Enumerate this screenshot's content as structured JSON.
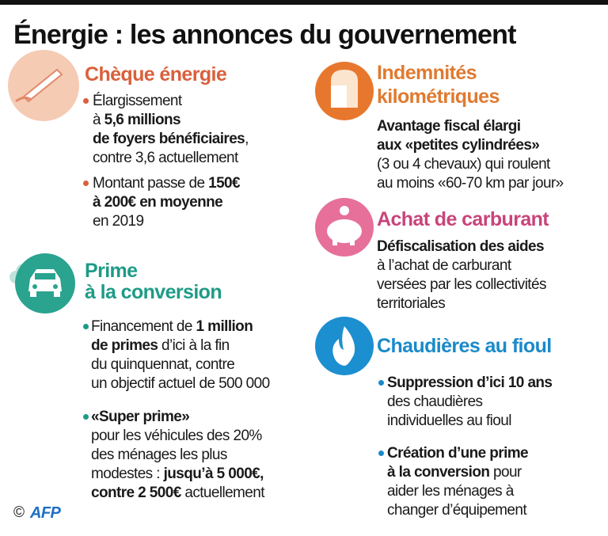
{
  "title": "Énergie : les annonces du gouvernement",
  "sections": [
    {
      "heading": [
        "Chèque énergie"
      ],
      "color": "#d9603b",
      "bulleted": true,
      "items": [
        {
          "lines": [
            [
              {
                "text": "Élargissement"
              }
            ],
            [
              {
                "text": "à "
              },
              {
                "text": "5,6 millions",
                "bold": true
              }
            ],
            [
              {
                "text": "de foyers bénéficiaires",
                "bold": true
              },
              {
                "text": ","
              }
            ],
            [
              {
                "text": "contre 3,6 actuellement"
              }
            ]
          ]
        },
        {
          "lines": [
            [
              {
                "text": "Montant passe de "
              },
              {
                "text": "150€",
                "bold": true
              }
            ],
            [
              {
                "text": "à 200€ en moyenne",
                "bold": true
              }
            ],
            [
              {
                "text": "en 2019"
              }
            ]
          ]
        }
      ]
    },
    {
      "heading": [
        "Prime",
        "à la conversion"
      ],
      "color": "#1e9b87",
      "bulleted": true,
      "items": [
        {
          "lines": [
            [
              {
                "text": "Financement de "
              },
              {
                "text": "1 million",
                "bold": true
              }
            ],
            [
              {
                "text": "de primes",
                "bold": true
              },
              {
                "text": " d’ici à la fin"
              }
            ],
            [
              {
                "text": "du quinquennat, contre"
              }
            ],
            [
              {
                "text": "un objectif actuel de 500 000"
              }
            ]
          ]
        },
        {
          "lines": [
            [
              {
                "text": "«Super prime»",
                "bold": true
              }
            ],
            [
              {
                "text": "pour les véhicules des 20%"
              }
            ],
            [
              {
                "text": "des ménages les plus"
              }
            ],
            [
              {
                "text": "modestes : "
              },
              {
                "text": "jusqu’à 5 000€,",
                "bold": true
              }
            ],
            [
              {
                "text": "contre 2 500€",
                "bold": true
              },
              {
                "text": " actuellement"
              }
            ]
          ]
        }
      ]
    },
    {
      "heading": [
        "Indemnités",
        "kilométriques"
      ],
      "color": "#e07a30",
      "bulleted": false,
      "items": [
        {
          "lines": [
            [
              {
                "text": "Avantage fiscal élargi",
                "bold": true
              }
            ],
            [
              {
                "text": "aux «petites cylindrées»",
                "bold": true
              }
            ],
            [
              {
                "text": "(3 ou 4 chevaux) qui roulent"
              }
            ],
            [
              {
                "text": "au moins «60-70 km par jour»"
              }
            ]
          ]
        }
      ]
    },
    {
      "heading": [
        "Achat de carburant"
      ],
      "color": "#c8447a",
      "bulleted": false,
      "items": [
        {
          "lines": [
            [
              {
                "text": "Défiscalisation des aides",
                "bold": true
              }
            ],
            [
              {
                "text": "à l’achat de carburant"
              }
            ],
            [
              {
                "text": "versées par les collectivités"
              }
            ],
            [
              {
                "text": "territoriales"
              }
            ]
          ]
        }
      ]
    },
    {
      "heading": [
        "Chaudières au fioul"
      ],
      "color": "#1a8ac9",
      "bulleted": true,
      "items": [
        {
          "lines": [
            [
              {
                "text": "Suppression d’ici 10 ans",
                "bold": true
              }
            ],
            [
              {
                "text": "des chaudières"
              }
            ],
            [
              {
                "text": "individuelles au fioul"
              }
            ]
          ]
        },
        {
          "lines": [
            [
              {
                "text": "Création d’une prime",
                "bold": true
              }
            ],
            [
              {
                "text": "à la conversion",
                "bold": true
              },
              {
                "text": " pour"
              }
            ],
            [
              {
                "text": "aider les ménages à"
              }
            ],
            [
              {
                "text": "changer d’équipement"
              }
            ]
          ]
        }
      ]
    }
  ],
  "footer": {
    "copyright": "©",
    "logo": "AFP"
  }
}
